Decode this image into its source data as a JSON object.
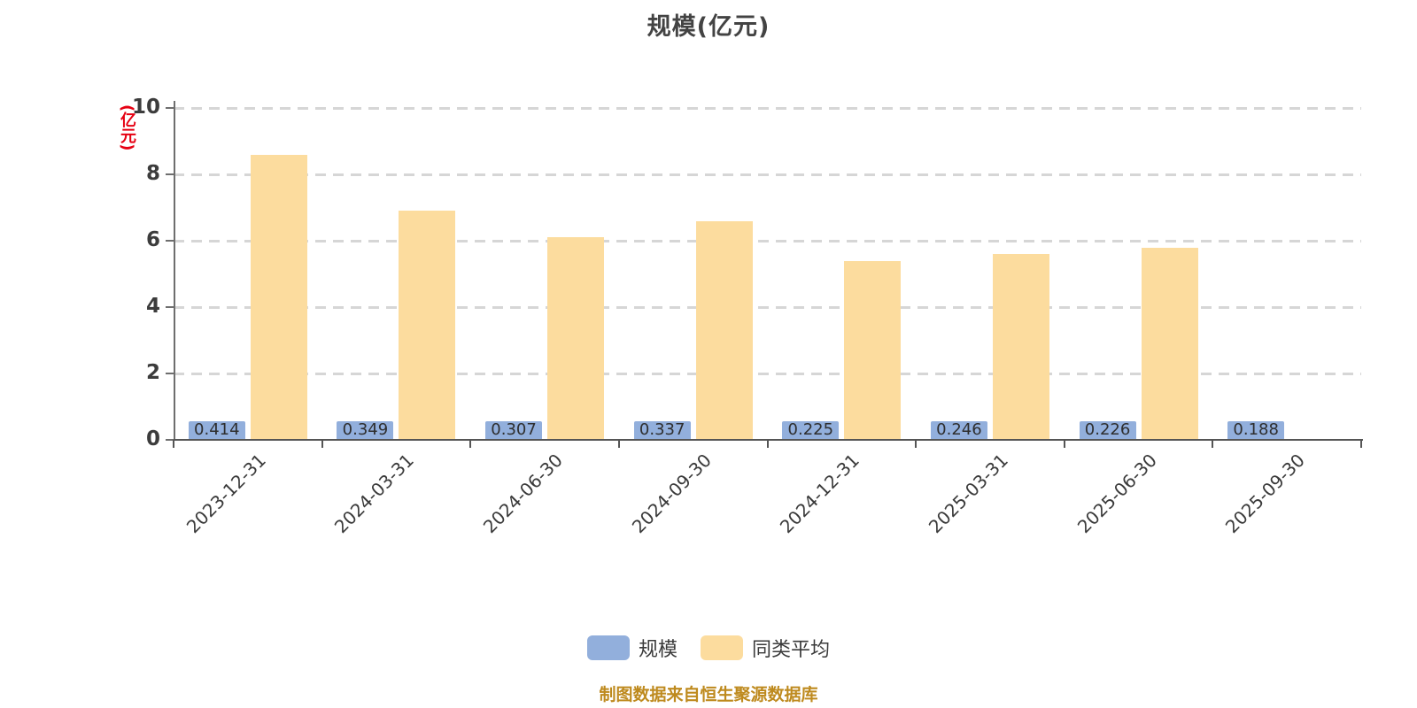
{
  "page": {
    "background_color": "#ffffff"
  },
  "chart_data": {
    "type": "bar",
    "title": "规模(亿元)",
    "y_unit_label": "(亿元)",
    "y_unit_color": "#e60012",
    "categories": [
      "2023-12-31",
      "2024-03-31",
      "2024-06-30",
      "2024-09-30",
      "2024-12-31",
      "2025-03-31",
      "2025-06-30",
      "2025-09-30"
    ],
    "series": [
      {
        "name": "规模",
        "color": "#92AFDC",
        "values": [
          0.414,
          0.349,
          0.307,
          0.337,
          0.225,
          0.246,
          0.226,
          0.188
        ],
        "data_labels": [
          "0.414",
          "0.349",
          "0.307",
          "0.337",
          "0.225",
          "0.246",
          "0.226",
          "0.188"
        ]
      },
      {
        "name": "同类平均",
        "color": "#FCDC9E",
        "values": [
          8.6,
          6.9,
          6.1,
          6.6,
          5.4,
          5.6,
          5.8,
          null
        ],
        "data_labels": null
      }
    ],
    "ylim": [
      0,
      10
    ],
    "yticks": [
      "0",
      "2",
      "4",
      "6",
      "8",
      "10"
    ],
    "grid": "horizontal-dashed",
    "legend_position": "bottom",
    "footer": "制图数据来自恒生聚源数据库",
    "footer_color": "#be8a1e",
    "axis_text_color": "#3a3a3a"
  }
}
